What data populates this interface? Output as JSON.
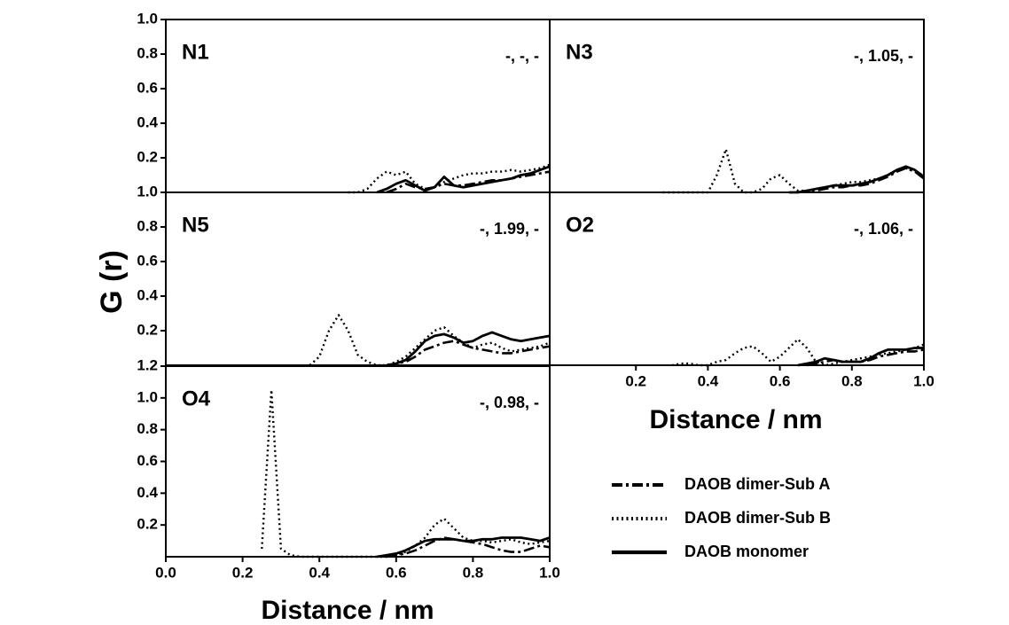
{
  "chart_data": [
    {
      "type": "line",
      "label": "N1",
      "annotation": "-, -, -",
      "row": 0,
      "col": 0,
      "x": [
        0.25,
        0.275,
        0.3,
        0.325,
        0.35,
        0.375,
        0.4,
        0.425,
        0.45,
        0.475,
        0.5,
        0.525,
        0.55,
        0.575,
        0.6,
        0.625,
        0.65,
        0.675,
        0.7,
        0.725,
        0.75,
        0.775,
        0.8,
        0.825,
        0.85,
        0.875,
        0.9,
        0.925,
        0.95,
        0.975,
        1.0
      ],
      "xlim": [
        0,
        1
      ],
      "ylim": [
        0,
        1
      ],
      "yticks": [
        0.2,
        0.4,
        0.6,
        0.8,
        {
          "value": 1,
          "label": "1.0"
        }
      ],
      "series": [
        {
          "values": [
            null,
            null,
            null,
            null,
            null,
            null,
            null,
            null,
            null,
            null,
            null,
            null,
            null,
            0,
            0.02,
            0.05,
            0.03,
            0.02,
            0.03,
            0.05,
            0.04,
            0.04,
            0.05,
            0.06,
            0.07,
            0.07,
            0.08,
            0.09,
            0.1,
            0.11,
            0.12
          ]
        },
        {
          "values": [
            null,
            null,
            null,
            null,
            null,
            null,
            null,
            null,
            null,
            0,
            0,
            0.02,
            0.08,
            0.12,
            0.1,
            0.12,
            0.05,
            0.02,
            0.03,
            0.06,
            0.08,
            0.1,
            0.11,
            0.11,
            0.12,
            0.12,
            0.13,
            0.12,
            0.13,
            0.14,
            0.16
          ]
        },
        {
          "values": [
            null,
            null,
            null,
            null,
            null,
            null,
            null,
            null,
            null,
            null,
            null,
            null,
            0,
            0.02,
            0.05,
            0.07,
            0.04,
            0.01,
            0.03,
            0.09,
            0.04,
            0.03,
            0.04,
            0.05,
            0.06,
            0.07,
            0.08,
            0.1,
            0.11,
            0.13,
            0.15
          ]
        }
      ]
    },
    {
      "type": "line",
      "label": "N3",
      "annotation": "-, 1.05, -",
      "row": 0,
      "col": 1,
      "x": [
        0.25,
        0.275,
        0.3,
        0.325,
        0.35,
        0.375,
        0.4,
        0.425,
        0.45,
        0.475,
        0.5,
        0.525,
        0.55,
        0.575,
        0.6,
        0.625,
        0.65,
        0.675,
        0.7,
        0.725,
        0.75,
        0.775,
        0.8,
        0.825,
        0.85,
        0.875,
        0.9,
        0.925,
        0.95,
        0.975,
        1.0
      ],
      "xlim": [
        0,
        1
      ],
      "ylim": [
        0,
        1
      ],
      "series": [
        {
          "values": [
            null,
            null,
            null,
            null,
            null,
            null,
            null,
            null,
            null,
            null,
            null,
            null,
            null,
            null,
            null,
            null,
            0,
            0.01,
            0.01,
            0.02,
            0.03,
            0.03,
            0.04,
            0.04,
            0.05,
            0.07,
            0.09,
            0.12,
            0.14,
            0.12,
            0.08
          ]
        },
        {
          "values": [
            null,
            0,
            0,
            0,
            0,
            0,
            0,
            0.1,
            0.25,
            0.05,
            0,
            0,
            0.02,
            0.08,
            0.1,
            0.05,
            0.01,
            0.01,
            0.02,
            0.03,
            0.04,
            0.05,
            0.06,
            0.06,
            0.07,
            0.08,
            0.1,
            0.12,
            0.14,
            0.12,
            0.1
          ]
        },
        {
          "values": [
            null,
            null,
            null,
            null,
            null,
            null,
            null,
            null,
            null,
            null,
            null,
            null,
            null,
            null,
            null,
            0,
            0,
            0.01,
            0.02,
            0.03,
            0.04,
            0.04,
            0.04,
            0.05,
            0.06,
            0.08,
            0.1,
            0.13,
            0.15,
            0.13,
            0.09
          ]
        }
      ]
    },
    {
      "type": "line",
      "label": "N5",
      "annotation": "-, 1.99, -",
      "row": 1,
      "col": 0,
      "x": [
        0.25,
        0.275,
        0.3,
        0.325,
        0.35,
        0.375,
        0.4,
        0.425,
        0.45,
        0.475,
        0.5,
        0.525,
        0.55,
        0.575,
        0.6,
        0.625,
        0.65,
        0.675,
        0.7,
        0.725,
        0.75,
        0.775,
        0.8,
        0.825,
        0.85,
        0.875,
        0.9,
        0.925,
        0.95,
        0.975,
        1.0
      ],
      "xlim": [
        0,
        1
      ],
      "ylim": [
        0,
        1
      ],
      "yticks": [
        0.2,
        0.4,
        0.6,
        0.8,
        {
          "value": 1,
          "label": "1.0"
        }
      ],
      "series": [
        {
          "values": [
            null,
            null,
            null,
            null,
            null,
            null,
            null,
            null,
            null,
            null,
            null,
            null,
            null,
            0,
            0.01,
            0.02,
            0.05,
            0.09,
            0.11,
            0.13,
            0.14,
            0.12,
            0.1,
            0.09,
            0.08,
            0.07,
            0.07,
            0.08,
            0.09,
            0.1,
            0.11
          ]
        },
        {
          "values": [
            null,
            null,
            null,
            null,
            null,
            0,
            0.05,
            0.2,
            0.29,
            0.2,
            0.06,
            0.02,
            0,
            0,
            0.02,
            0.05,
            0.1,
            0.15,
            0.2,
            0.22,
            0.17,
            0.13,
            0.1,
            0.12,
            0.13,
            0.1,
            0.08,
            0.09,
            0.1,
            0.11,
            0.13
          ]
        },
        {
          "values": [
            null,
            null,
            null,
            null,
            null,
            null,
            null,
            null,
            null,
            null,
            null,
            null,
            null,
            0,
            0.01,
            0.03,
            0.08,
            0.14,
            0.17,
            0.18,
            0.16,
            0.13,
            0.14,
            0.17,
            0.19,
            0.17,
            0.15,
            0.14,
            0.15,
            0.16,
            0.17
          ]
        }
      ]
    },
    {
      "type": "line",
      "label": "O2",
      "annotation": "-, 1.06, -",
      "row": 1,
      "col": 1,
      "x": [
        0.25,
        0.275,
        0.3,
        0.325,
        0.35,
        0.375,
        0.4,
        0.425,
        0.45,
        0.475,
        0.5,
        0.525,
        0.55,
        0.575,
        0.6,
        0.625,
        0.65,
        0.675,
        0.7,
        0.725,
        0.75,
        0.775,
        0.8,
        0.825,
        0.85,
        0.875,
        0.9,
        0.925,
        0.95,
        0.975,
        1.0
      ],
      "xlim": [
        0,
        1
      ],
      "ylim": [
        0,
        1
      ],
      "xticks": [
        0.2,
        0.4,
        0.6,
        0.8,
        {
          "value": 1,
          "label": "1.0"
        }
      ],
      "series": [
        {
          "values": [
            null,
            null,
            null,
            null,
            null,
            null,
            null,
            null,
            null,
            null,
            null,
            null,
            null,
            null,
            null,
            null,
            null,
            0,
            0.01,
            0.02,
            0.03,
            0.02,
            0.02,
            0.02,
            0.03,
            0.05,
            0.06,
            0.07,
            0.08,
            0.08,
            0.09
          ]
        },
        {
          "values": [
            null,
            null,
            0,
            0.01,
            0.01,
            0,
            0,
            0.02,
            0.03,
            0.07,
            0.1,
            0.11,
            0.07,
            0.02,
            0.05,
            0.1,
            0.15,
            0.1,
            0.02,
            0,
            0.01,
            0.02,
            0.03,
            0.04,
            0.05,
            0.06,
            0.07,
            0.08,
            0.09,
            0.1,
            0.12
          ]
        },
        {
          "values": [
            null,
            null,
            null,
            null,
            null,
            null,
            null,
            null,
            null,
            null,
            null,
            null,
            null,
            null,
            null,
            null,
            0,
            0.01,
            0.02,
            0.04,
            0.03,
            0.02,
            0.02,
            0.02,
            0.04,
            0.07,
            0.09,
            0.09,
            0.09,
            0.1,
            0.1
          ]
        }
      ]
    },
    {
      "type": "line",
      "label": "O4",
      "annotation": "-, 0.98, -",
      "row": 2,
      "col": 0,
      "x": [
        0.25,
        0.275,
        0.3,
        0.325,
        0.35,
        0.375,
        0.4,
        0.425,
        0.45,
        0.475,
        0.5,
        0.525,
        0.55,
        0.575,
        0.6,
        0.625,
        0.65,
        0.675,
        0.7,
        0.725,
        0.75,
        0.775,
        0.8,
        0.825,
        0.85,
        0.875,
        0.9,
        0.925,
        0.95,
        0.975,
        1.0
      ],
      "xlim": [
        0,
        1
      ],
      "ylim": [
        0,
        1.2
      ],
      "xticks": [
        {
          "value": 0,
          "label": "0.0"
        },
        0.2,
        0.4,
        0.6,
        0.8,
        {
          "value": 1,
          "label": "1.0"
        }
      ],
      "yticks": [
        0.2,
        0.4,
        0.6,
        0.8,
        {
          "value": 1,
          "label": "1.0"
        },
        {
          "value": 1.2,
          "label": "1.2"
        }
      ],
      "series": [
        {
          "values": [
            null,
            null,
            null,
            null,
            null,
            null,
            null,
            null,
            null,
            null,
            null,
            null,
            null,
            0,
            0.01,
            0.02,
            0.04,
            0.07,
            0.1,
            0.12,
            0.11,
            0.1,
            0.09,
            0.08,
            0.06,
            0.04,
            0.03,
            0.03,
            0.05,
            0.07,
            0.06
          ]
        },
        {
          "values": [
            0.05,
            1.05,
            0.05,
            0.01,
            0,
            0,
            0,
            0,
            0,
            0,
            0,
            0,
            0,
            0,
            0.01,
            0.03,
            0.07,
            0.12,
            0.2,
            0.24,
            0.18,
            0.12,
            0.1,
            0.1,
            0.09,
            0.1,
            0.11,
            0.09,
            0.08,
            0.09,
            0.1
          ]
        },
        {
          "values": [
            null,
            null,
            null,
            null,
            null,
            null,
            null,
            null,
            null,
            null,
            null,
            null,
            0,
            0.01,
            0.02,
            0.04,
            0.07,
            0.1,
            0.11,
            0.11,
            0.11,
            0.1,
            0.1,
            0.11,
            0.11,
            0.12,
            0.12,
            0.12,
            0.11,
            0.1,
            0.12
          ]
        }
      ]
    }
  ],
  "legend": [
    {
      "name": "DAOB dimer-Sub A",
      "color": "#000000",
      "dash": "dashdot"
    },
    {
      "name": "DAOB dimer-Sub B",
      "color": "#000000",
      "dash": "dotted"
    },
    {
      "name": "DAOB monomer",
      "color": "#000000",
      "dash": "solid"
    }
  ],
  "y_label": "G (r)",
  "x_label_left": "Distance / nm",
  "x_label_right": "Distance / nm"
}
